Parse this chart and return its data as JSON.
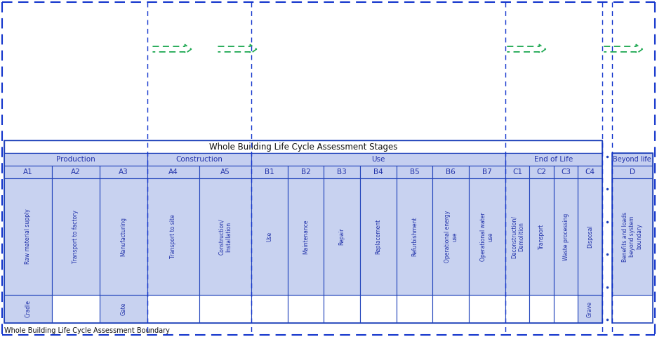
{
  "title": "Whole Building Life Cycle Assessment Stages",
  "boundary_text": "Whole Building Life Cycle Assessment Boundary",
  "blue_text": "#2233aa",
  "dark_text": "#111111",
  "border_col": "#2244bb",
  "dashed_col": "#1133cc",
  "green_col": "#22aa55",
  "cell_bg": "#c5cff0",
  "desc_bg": "#c8d2f0",
  "white": "#ffffff",
  "prod_codes": [
    "A1",
    "A2",
    "A3"
  ],
  "prod_descs": [
    "Raw material supply",
    "Transport to factory",
    "Manufacturing"
  ],
  "prod_bottom": [
    "Cradle",
    "",
    "Gate"
  ],
  "constr_codes": [
    "A4",
    "A5"
  ],
  "constr_descs": [
    "Transport to site",
    "Construction/\nInstallation"
  ],
  "use_codes": [
    "B1",
    "B2",
    "B3",
    "B4",
    "B5",
    "B6",
    "B7"
  ],
  "use_descs": [
    "Use",
    "Maintenance",
    "Repair",
    "Replacement",
    "Refurbishment",
    "Operational energy\nuse",
    "Operational water\nuse"
  ],
  "eol_codes": [
    "C1",
    "C2",
    "C3",
    "C4"
  ],
  "eol_descs": [
    "Deconstruction/\nDemolition",
    "Transport",
    "Waste processing",
    "Disposal"
  ],
  "eol_bottom": [
    "",
    "",
    "",
    "Grave"
  ],
  "beyond_code": "D",
  "beyond_desc": "Benefits and loads\nbeyond system\nboundary"
}
